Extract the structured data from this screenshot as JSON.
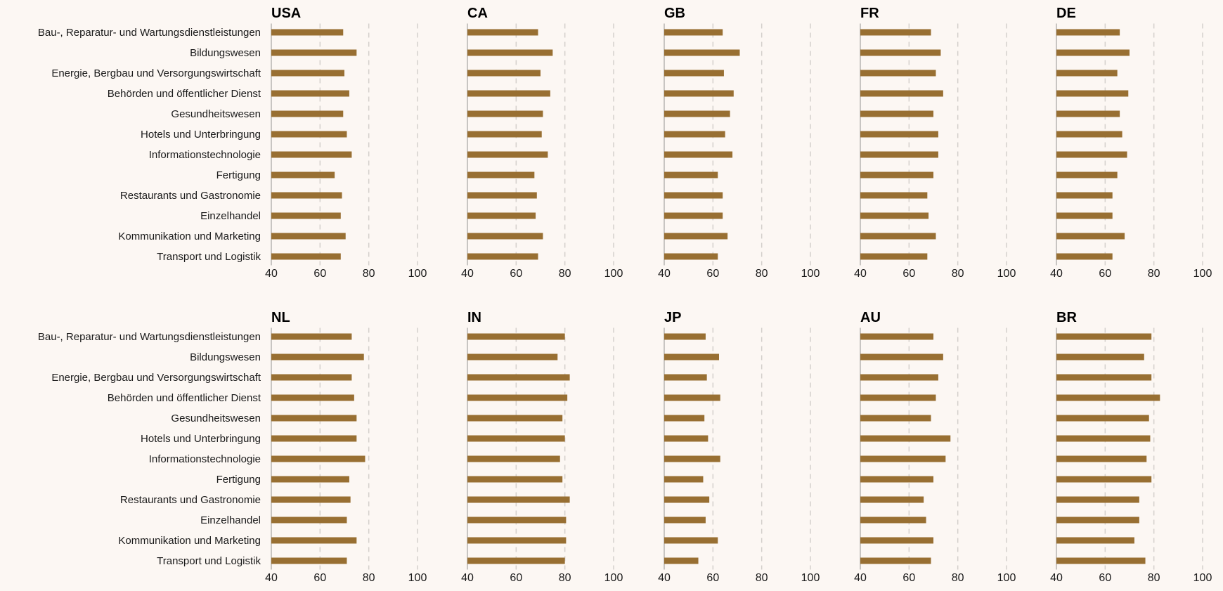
{
  "colors": {
    "background": "#fcf7f3",
    "bar": "#986f32",
    "grid": "#d4d0cc",
    "axis": "#c8c5c2",
    "text": "#1a1a1a",
    "title": "#000000"
  },
  "chart_data": {
    "type": "bar",
    "orientation": "horizontal",
    "layout": "small-multiples",
    "rows": 2,
    "cols": 5,
    "xlim": [
      40,
      100
    ],
    "xticks": [
      40,
      60,
      80,
      100
    ],
    "grid": "vertical-dashed",
    "categories": [
      "Bau-, Reparatur- und Wartungsdienstleistungen",
      "Bildungswesen",
      "Energie, Bergbau und Versorgungswirtschaft",
      "Behörden und öffentlicher Dienst",
      "Gesundheitswesen",
      "Hotels und Unterbringung",
      "Informationstechnologie",
      "Fertigung",
      "Restaurants und Gastronomie",
      "Einzelhandel",
      "Kommunikation und Marketing",
      "Transport und Logistik"
    ],
    "panels": [
      {
        "title": "USA",
        "values": [
          69.5,
          75.0,
          70.0,
          72.0,
          69.5,
          71.0,
          73.0,
          66.0,
          69.0,
          68.5,
          70.5,
          68.5
        ]
      },
      {
        "title": "CA",
        "values": [
          69.0,
          75.0,
          70.0,
          74.0,
          71.0,
          70.5,
          73.0,
          67.5,
          68.5,
          68.0,
          71.0,
          69.0
        ]
      },
      {
        "title": "GB",
        "values": [
          64.0,
          71.0,
          64.5,
          68.5,
          67.0,
          65.0,
          68.0,
          62.0,
          64.0,
          64.0,
          66.0,
          62.0
        ]
      },
      {
        "title": "FR",
        "values": [
          69.0,
          73.0,
          71.0,
          74.0,
          70.0,
          72.0,
          72.0,
          70.0,
          67.5,
          68.0,
          71.0,
          67.5
        ]
      },
      {
        "title": "DE",
        "values": [
          66.0,
          70.0,
          65.0,
          69.5,
          66.0,
          67.0,
          69.0,
          65.0,
          63.0,
          63.0,
          68.0,
          63.0
        ]
      },
      {
        "title": "NL",
        "values": [
          73.0,
          78.0,
          73.0,
          74.0,
          75.0,
          75.0,
          78.5,
          72.0,
          72.5,
          71.0,
          75.0,
          71.0
        ]
      },
      {
        "title": "IN",
        "values": [
          80.0,
          77.0,
          82.0,
          81.0,
          79.0,
          80.0,
          78.0,
          79.0,
          82.0,
          80.5,
          80.5,
          80.0
        ]
      },
      {
        "title": "JP",
        "values": [
          57.0,
          62.5,
          57.5,
          63.0,
          56.5,
          58.0,
          63.0,
          56.0,
          58.5,
          57.0,
          62.0,
          54.0
        ]
      },
      {
        "title": "AU",
        "values": [
          70.0,
          74.0,
          72.0,
          71.0,
          69.0,
          77.0,
          75.0,
          70.0,
          66.0,
          67.0,
          70.0,
          69.0
        ]
      },
      {
        "title": "BR",
        "values": [
          79.0,
          76.0,
          79.0,
          82.5,
          78.0,
          78.5,
          77.0,
          79.0,
          74.0,
          74.0,
          72.0,
          76.5
        ]
      }
    ]
  }
}
